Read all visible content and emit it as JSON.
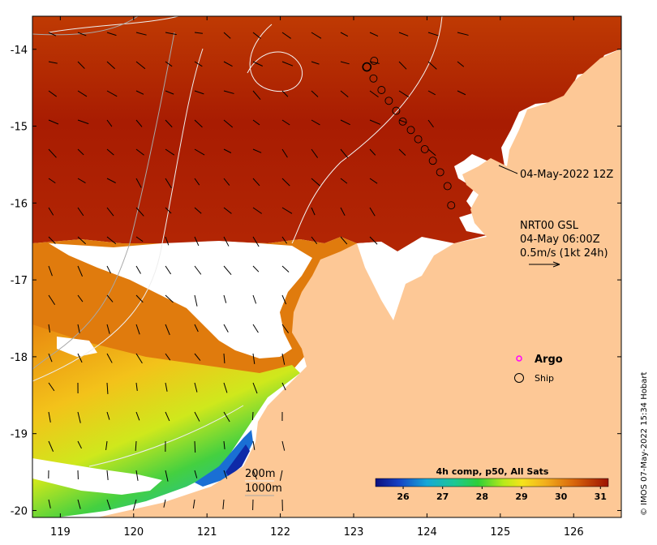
{
  "map": {
    "x_ticks": [
      119,
      120,
      121,
      122,
      123,
      124,
      125,
      126
    ],
    "y_ticks": [
      -14,
      -15,
      -16,
      -17,
      -18,
      -19,
      -20
    ],
    "xlim": [
      118.62,
      126.65
    ],
    "ylim": [
      -20.09,
      -13.57
    ],
    "land_color": "#fdc896",
    "cloud_color": "#ffffff"
  },
  "annotations": {
    "ship_time": "04-May-2022 12Z",
    "current_source": "NRT00 GSL",
    "current_time": "04-May 06:00Z",
    "current_scale": "0.5m/s (1kt 24h)"
  },
  "legend": {
    "argo_label": "Argo",
    "argo_color": "#ff00ff",
    "ship_label": "Ship"
  },
  "isobaths": {
    "shallow_label": "200m",
    "deep_label": "1000m"
  },
  "colorbar": {
    "title": "4h comp, p50, All Sats",
    "ticks": [
      26,
      27,
      28,
      29,
      30,
      31
    ],
    "vmin": 25.3,
    "vmax": 31.2
  },
  "credit": "© IMOS 07-May-2022 15:34 Hobart",
  "ship_track": [
    [
      123.18,
      -14.23
    ],
    [
      123.28,
      -14.15
    ],
    [
      123.27,
      -14.38
    ],
    [
      123.38,
      -14.53
    ],
    [
      123.48,
      -14.67
    ],
    [
      123.58,
      -14.8
    ],
    [
      123.67,
      -14.94
    ],
    [
      123.78,
      -15.05
    ],
    [
      123.88,
      -15.17
    ],
    [
      123.97,
      -15.3
    ],
    [
      124.08,
      -15.45
    ],
    [
      124.18,
      -15.6
    ],
    [
      124.28,
      -15.78
    ],
    [
      124.33,
      -16.03
    ]
  ]
}
